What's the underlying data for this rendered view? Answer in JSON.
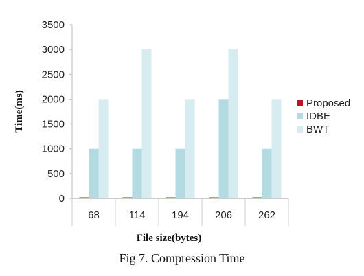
{
  "chart_data": {
    "type": "bar",
    "categories": [
      "68",
      "114",
      "194",
      "206",
      "262"
    ],
    "series": [
      {
        "name": "Proposed",
        "values": [
          5,
          10,
          10,
          20,
          10
        ],
        "color": "#c0151b"
      },
      {
        "name": "IDBE",
        "values": [
          1000,
          1000,
          1000,
          2000,
          1000
        ],
        "color": "#b4dbe2"
      },
      {
        "name": "BWT",
        "values": [
          2000,
          3000,
          2000,
          3000,
          2000
        ],
        "color": "#d6ecf0"
      }
    ],
    "xlabel": "File  size(bytes)",
    "ylabel": "Time(ms)",
    "ylim": [
      0,
      3500
    ],
    "yticks": [
      0,
      500,
      1000,
      1500,
      2000,
      2500,
      3000,
      3500
    ],
    "grid": false,
    "legend_position": "right"
  },
  "caption": "Fig 7. Compression Time"
}
